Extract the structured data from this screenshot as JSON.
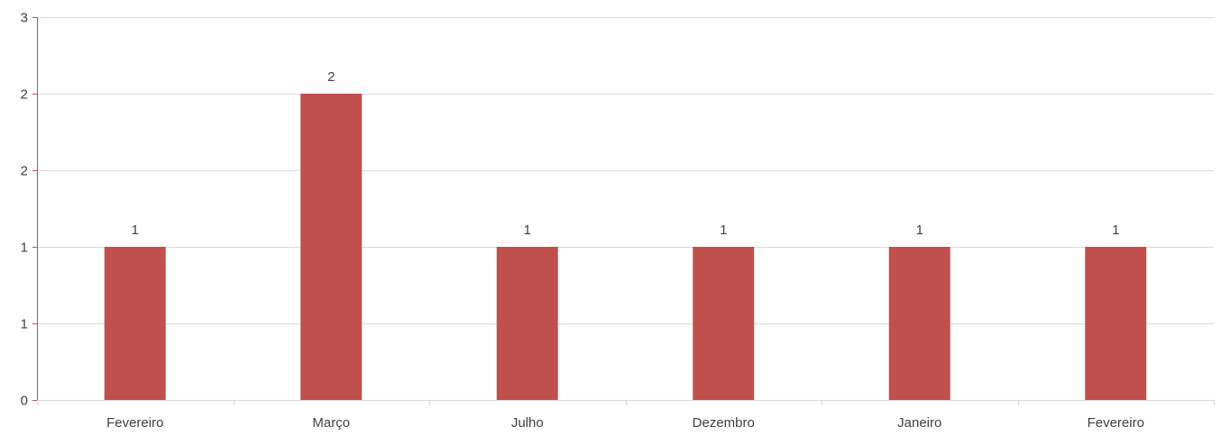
{
  "chart_data": {
    "type": "bar",
    "title": "",
    "xlabel": "",
    "ylabel": "",
    "categories": [
      "Fevereiro",
      "Março",
      "Julho",
      "Dezembro",
      "Janeiro",
      "Fevereiro"
    ],
    "values": [
      1,
      2,
      1,
      1,
      1,
      1
    ],
    "data_labels": [
      "1",
      "2",
      "1",
      "1",
      "1",
      "1"
    ],
    "ylim": [
      0,
      2.5
    ],
    "y_ticks": [
      0,
      0.5,
      1,
      1.5,
      2,
      2.5
    ],
    "y_tick_labels": [
      "0",
      "1",
      "1",
      "2",
      "2",
      "3"
    ],
    "grid": true,
    "legend": "none",
    "colors": {
      "bar": "#C0504D",
      "y_axis": "#C0504D",
      "x_axis": "#d9d9d9",
      "grid": "#d9d9d9",
      "text": "#404040"
    }
  }
}
